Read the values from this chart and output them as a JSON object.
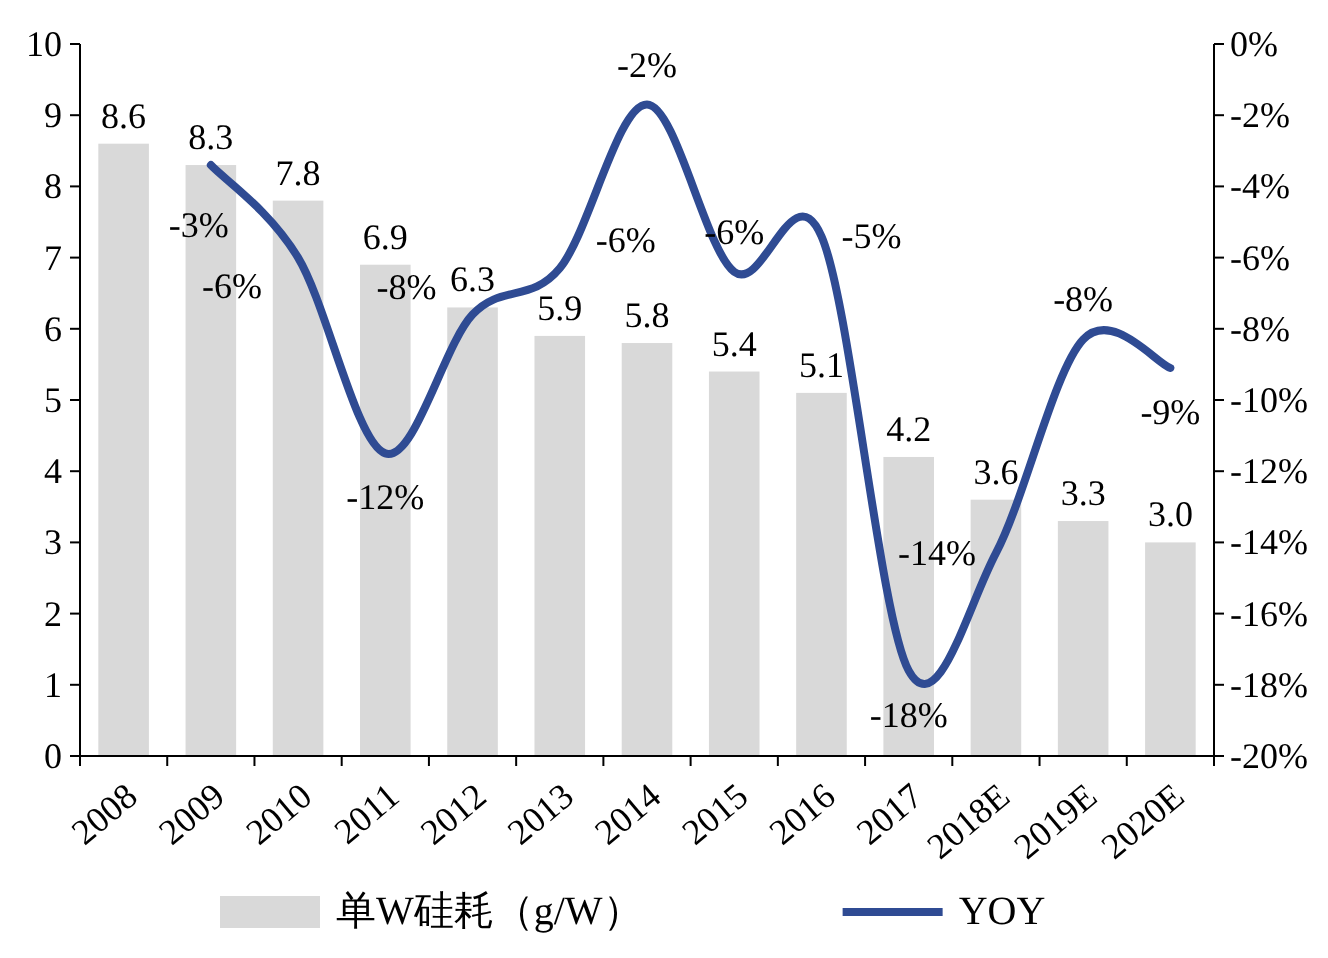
{
  "chart_data": {
    "type": "bar",
    "categories": [
      "2008",
      "2009",
      "2010",
      "2011",
      "2012",
      "2013",
      "2014",
      "2015",
      "2016",
      "2017",
      "2018E",
      "2019E",
      "2020E"
    ],
    "series": [
      {
        "name": "单W硅耗（g/W）",
        "color": "#d9d9d9",
        "values": [
          8.6,
          8.3,
          7.8,
          6.9,
          6.3,
          5.9,
          5.8,
          5.4,
          5.1,
          4.2,
          3.6,
          3.3,
          3.0
        ],
        "value_labels": [
          "8.6",
          "8.3",
          "7.8",
          "6.9",
          "6.3",
          "5.9",
          "5.8",
          "5.4",
          "5.1",
          "4.2",
          "3.6",
          "3.3",
          "3.0"
        ]
      },
      {
        "name": "YOY",
        "type": "line",
        "axis": "y2",
        "color": "#2f4b93",
        "values": [
          null,
          -3.4,
          -6.0,
          -11.5,
          -7.6,
          -6.3,
          -1.7,
          -6.4,
          -5.4,
          -17.6,
          -14.3,
          -8.3,
          -9.1
        ],
        "value_labels": [
          null,
          "-3%",
          "-6%",
          "-12%",
          "-8%",
          "-6%",
          "-2%",
          "-6%",
          "-5%",
          "-18%",
          "-14%",
          "-8%",
          "-9%"
        ]
      }
    ],
    "ylim": [
      0,
      10
    ],
    "yticks": [
      0,
      1,
      2,
      3,
      4,
      5,
      6,
      7,
      8,
      9,
      10
    ],
    "y2lim": [
      -20,
      0
    ],
    "y2ticks": [
      {
        "value": -20,
        "label": "-20%"
      },
      {
        "value": -18,
        "label": "-18%"
      },
      {
        "value": -16,
        "label": "-16%"
      },
      {
        "value": -14,
        "label": "-14%"
      },
      {
        "value": -12,
        "label": "-12%"
      },
      {
        "value": -10,
        "label": "-10%"
      },
      {
        "value": -8,
        "label": "-8%"
      },
      {
        "value": -6,
        "label": "-6%"
      },
      {
        "value": -4,
        "label": "-4%"
      },
      {
        "value": -2,
        "label": "-2%"
      },
      {
        "value": 0,
        "label": "0%"
      }
    ],
    "grid": false,
    "legend": "bottom"
  }
}
